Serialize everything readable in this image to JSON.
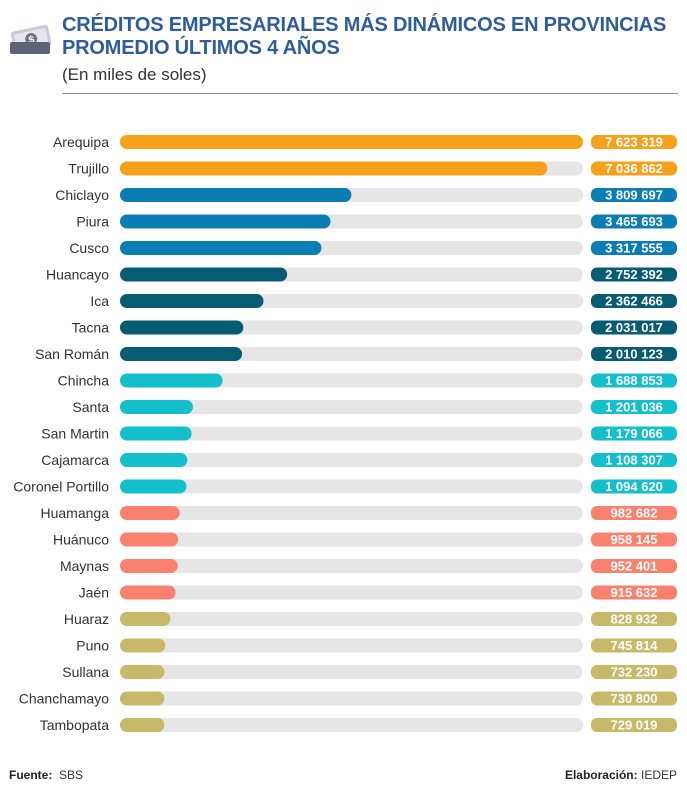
{
  "header": {
    "title_line1": "CRÉDITOS EMPRESARIALES MÁS DINÁMICOS EN PROVINCIAS",
    "title_line2": "PROMEDIO ÚLTIMOS 4 AÑOS",
    "subtitle": "(En miles de soles)",
    "icon": "money-bill-icon"
  },
  "chart_data": {
    "type": "bar",
    "orientation": "horizontal",
    "title": "CRÉDITOS EMPRESARIALES MÁS DINÁMICOS EN PROVINCIAS PROMEDIO ÚLTIMOS 4 AÑOS",
    "subtitle": "(En miles de soles)",
    "xlim": [
      0,
      7623319
    ],
    "grid": false,
    "categories": [
      "Arequipa",
      "Trujillo",
      "Chiclayo",
      "Piura",
      "Cusco",
      "Huancayo",
      "Ica",
      "Tacna",
      "San Román",
      "Chincha",
      "Santa",
      "San Martin",
      "Cajamarca",
      "Coronel Portillo",
      "Huamanga",
      "Huánuco",
      "Maynas",
      "Jaén",
      "Huaraz",
      "Puno",
      "Sullana",
      "Chanchamayo",
      "Tambopata"
    ],
    "values": [
      7623319,
      7036862,
      3809697,
      3465693,
      3317555,
      2752392,
      2362466,
      2031017,
      2010123,
      1688853,
      1201036,
      1179066,
      1108307,
      1094620,
      982682,
      958145,
      952401,
      915632,
      828932,
      745814,
      732230,
      730800,
      729019
    ],
    "value_labels": [
      "7 623 319",
      "7 036 862",
      "3 809 697",
      "3 465 693",
      "3 317 555",
      "2 752 392",
      "2 362 466",
      "2 031 017",
      "2 010 123",
      "1 688 853",
      "1 201 036",
      "1 179 066",
      "1 108 307",
      "1 094 620",
      "982 682",
      "958 145",
      "952 401",
      "915 632",
      "828 932",
      "745 814",
      "732 230",
      "730 800",
      "729 019"
    ],
    "bar_colors": [
      "#f7a11a",
      "#f7a11a",
      "#0a7db5",
      "#0a7db5",
      "#0a7db5",
      "#075b73",
      "#075b73",
      "#075b73",
      "#075b73",
      "#14bfcc",
      "#14bfcc",
      "#14bfcc",
      "#14bfcc",
      "#14bfcc",
      "#f9816d",
      "#f9816d",
      "#f9816d",
      "#f9816d",
      "#c7b86a",
      "#c7b86a",
      "#c7b86a",
      "#c7b86a",
      "#c7b86a"
    ],
    "track_color": "#e6e6e6"
  },
  "footer": {
    "source_label": "Fuente:",
    "source_value": "SBS",
    "credit_label": "Elaboración:",
    "credit_value": "IEDEP"
  }
}
